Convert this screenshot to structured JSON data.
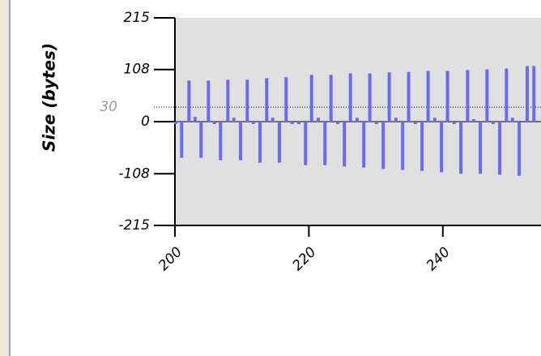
{
  "chart_data": {
    "type": "bar",
    "y_label": "Size (bytes)",
    "x": [
      200.1,
      201.0,
      202.1,
      203.0,
      203.9,
      205.0,
      205.9,
      206.8,
      207.9,
      208.8,
      209.8,
      210.8,
      211.7,
      212.7,
      213.7,
      214.6,
      215.6,
      216.6,
      217.5,
      218.5,
      219.5,
      220.4,
      221.4,
      222.4,
      223.3,
      224.3,
      225.3,
      226.2,
      227.2,
      228.2,
      229.1,
      230.1,
      231.1,
      232.0,
      233.0,
      234.0,
      234.9,
      235.9,
      236.9,
      237.8,
      238.8,
      239.8,
      240.7,
      241.7,
      242.7,
      243.7,
      244.6,
      245.6,
      246.6,
      247.5,
      248.5,
      249.5,
      250.4,
      251.4,
      252.6,
      253.6
    ],
    "values": [
      -5,
      -75,
      85,
      10,
      -75,
      85,
      -5,
      -80,
      87,
      8,
      -80,
      87,
      -5,
      -85,
      90,
      8,
      -85,
      92,
      -3,
      -3,
      -90,
      97,
      8,
      -90,
      97,
      -5,
      -93,
      100,
      8,
      -95,
      100,
      -5,
      -98,
      102,
      8,
      -100,
      103,
      -5,
      -102,
      105,
      8,
      -105,
      105,
      -5,
      -108,
      107,
      5,
      -108,
      108,
      -5,
      -110,
      110,
      8,
      -112,
      115,
      115
    ],
    "color": "#6b6bef",
    "threshold": 30,
    "xlim": [
      200,
      254.66
    ],
    "xticks": [
      200,
      220,
      240
    ],
    "ylim": [
      -215,
      215
    ],
    "yticks": [
      -215,
      -108,
      0,
      108,
      215
    ]
  }
}
